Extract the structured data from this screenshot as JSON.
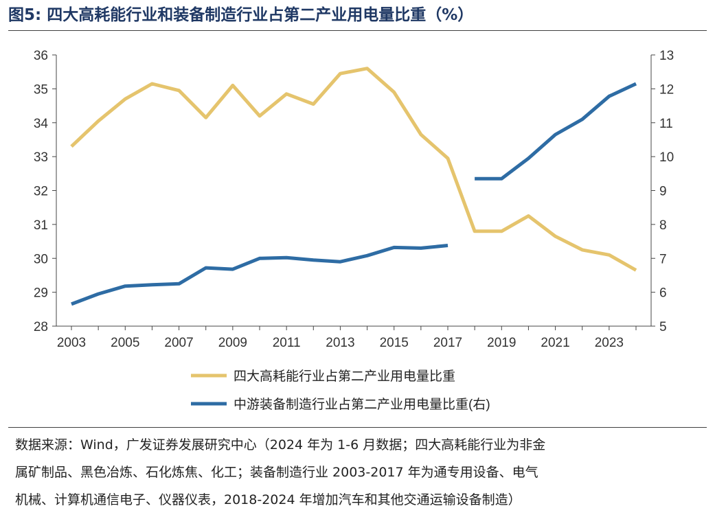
{
  "header": {
    "title": "图5:  四大高耗能行业和装备制造行业占第二产业用电量比重（%）"
  },
  "chart_data": {
    "type": "line",
    "title": "图5:  四大高耗能行业和装备制造行业占第二产业用电量比重（%）",
    "xlabel": "",
    "ylabel": "",
    "x": [
      2003,
      2004,
      2005,
      2006,
      2007,
      2008,
      2009,
      2010,
      2011,
      2012,
      2013,
      2014,
      2015,
      2016,
      2017,
      2018,
      2019,
      2020,
      2021,
      2022,
      2023,
      2024
    ],
    "x_tick_labels": [
      "2003",
      "2005",
      "2007",
      "2009",
      "2011",
      "2013",
      "2015",
      "2017",
      "2019",
      "2021",
      "2023"
    ],
    "y_left_ticks": [
      "28",
      "29",
      "30",
      "31",
      "32",
      "33",
      "34",
      "35",
      "36"
    ],
    "y_right_ticks": [
      "5",
      "6",
      "7",
      "8",
      "9",
      "10",
      "11",
      "12",
      "13"
    ],
    "ylim_left": [
      28,
      36
    ],
    "ylim_right": [
      5,
      13
    ],
    "grid": false,
    "legend_position": "bottom",
    "series": [
      {
        "name": "四大高耗能行业占第二产业用电量比重",
        "axis": "left",
        "color": "#e5c46d",
        "values": [
          33.3,
          34.05,
          34.7,
          35.15,
          34.95,
          34.15,
          35.1,
          34.2,
          34.85,
          34.55,
          35.45,
          35.6,
          34.9,
          33.65,
          32.95,
          30.8,
          30.8,
          31.25,
          30.65,
          30.25,
          30.1,
          29.65
        ]
      },
      {
        "name": "中游装备制造行业占第二产业用电量比重(右)",
        "axis": "right",
        "color": "#2e6ca4",
        "values": [
          5.65,
          5.95,
          6.18,
          6.22,
          6.25,
          6.72,
          6.68,
          7.0,
          7.02,
          6.95,
          6.9,
          7.08,
          7.32,
          7.3,
          7.38,
          9.35,
          9.35,
          9.95,
          10.65,
          11.1,
          11.78,
          12.15
        ],
        "segments": [
          [
            2003,
            2017
          ],
          [
            2018,
            2024
          ]
        ]
      }
    ]
  },
  "source": {
    "lines": [
      "数据来源：Wind，广发证券发展研究中心（2024 年为 1-6 月数据；四大高耗能行业为非金",
      "属矿制品、黑色冶炼、石化炼焦、化工；装备制造行业 2003-2017 年为通专用设备、电气",
      "机械、计算机通信电子、仪器仪表，2018-2024 年增加汽车和其他交通运输设备制造）"
    ]
  }
}
